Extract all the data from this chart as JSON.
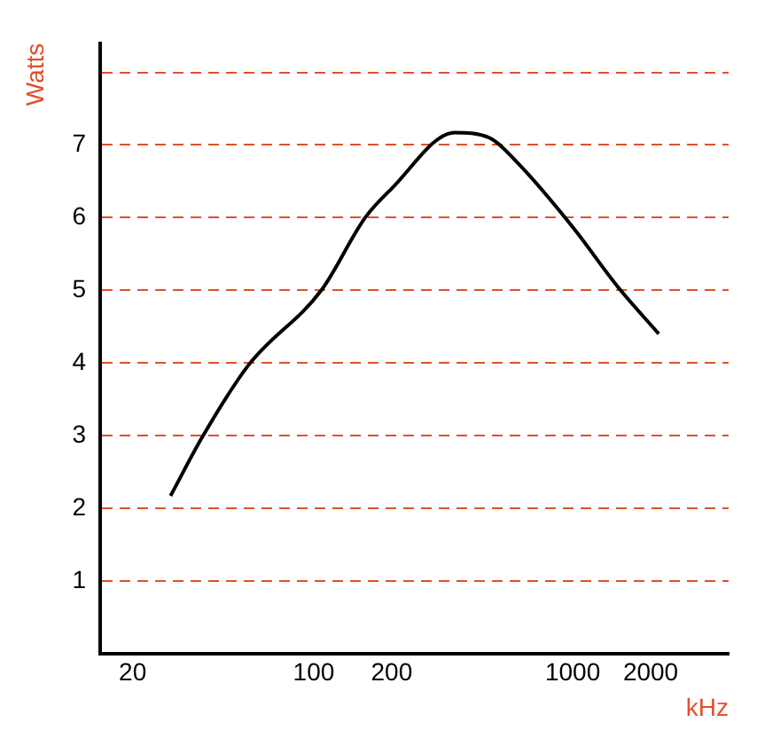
{
  "chart_data": {
    "type": "line",
    "xlabel": "kHz",
    "ylabel": "Watts",
    "log": "x",
    "x": [
      28,
      37,
      56,
      107,
      158,
      200,
      350,
      476,
      614,
      1000,
      1492,
      2150
    ],
    "series": [
      {
        "color": "#000000",
        "values": [
          2.17,
          2.97,
          3.97,
          5.0,
          6.0,
          6.4,
          7.17,
          7.1,
          6.75,
          5.87,
          5.05,
          4.4
        ]
      }
    ],
    "xlim": [
      15,
      4000
    ],
    "xticks": [
      20,
      100,
      200,
      1000,
      2000
    ],
    "ylim": [
      0,
      8.4
    ],
    "yticks": [
      1,
      2,
      3,
      4,
      5,
      6,
      7,
      {
        "value": 8,
        "label": null
      }
    ],
    "grid": "y",
    "legend": false,
    "marker": "none",
    "line_style": "solid"
  }
}
